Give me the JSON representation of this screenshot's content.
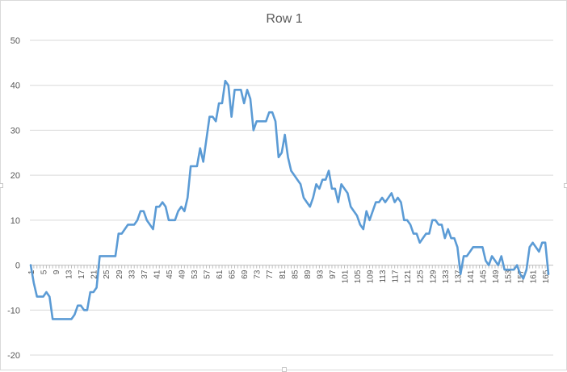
{
  "chart_data": {
    "type": "line",
    "title": "Row 1",
    "xlabel": "",
    "ylabel": "",
    "ylim": [
      -20,
      50
    ],
    "yticks": [
      -20,
      -10,
      0,
      10,
      20,
      30,
      40,
      50
    ],
    "grid": true,
    "legend": "none",
    "x_tick_labels": [
      "1",
      "5",
      "9",
      "13",
      "17",
      "21",
      "25",
      "29",
      "33",
      "37",
      "41",
      "45",
      "49",
      "53",
      "57",
      "61",
      "65",
      "69",
      "73",
      "77",
      "81",
      "85",
      "89",
      "93",
      "97",
      "101",
      "105",
      "109",
      "113",
      "117",
      "121",
      "125",
      "129",
      "133",
      "137",
      "141",
      "145",
      "149",
      "153",
      "157",
      "161",
      "165"
    ],
    "x": [
      1,
      2,
      3,
      4,
      5,
      6,
      7,
      8,
      9,
      10,
      11,
      12,
      13,
      14,
      15,
      16,
      17,
      18,
      19,
      20,
      21,
      22,
      23,
      24,
      25,
      26,
      27,
      28,
      29,
      30,
      31,
      32,
      33,
      34,
      35,
      36,
      37,
      38,
      39,
      40,
      41,
      42,
      43,
      44,
      45,
      46,
      47,
      48,
      49,
      50,
      51,
      52,
      53,
      54,
      55,
      56,
      57,
      58,
      59,
      60,
      61,
      62,
      63,
      64,
      65,
      66,
      67,
      68,
      69,
      70,
      71,
      72,
      73,
      74,
      75,
      76,
      77,
      78,
      79,
      80,
      81,
      82,
      83,
      84,
      85,
      86,
      87,
      88,
      89,
      90,
      91,
      92,
      93,
      94,
      95,
      96,
      97,
      98,
      99,
      100,
      101,
      102,
      103,
      104,
      105,
      106,
      107,
      108,
      109,
      110,
      111,
      112,
      113,
      114,
      115,
      116,
      117,
      118,
      119,
      120,
      121,
      122,
      123,
      124,
      125,
      126,
      127,
      128,
      129,
      130,
      131,
      132,
      133,
      134,
      135,
      136,
      137,
      138,
      139,
      140,
      141,
      142,
      143,
      144,
      145,
      146,
      147,
      148,
      149,
      150,
      151,
      152,
      153,
      154,
      155,
      156,
      157,
      158,
      159,
      160,
      161,
      162,
      163,
      164,
      165,
      166
    ],
    "series": [
      {
        "color": "#5b9bd5",
        "values": [
          0,
          -4,
          -7,
          -7,
          -7,
          -6,
          -7,
          -12,
          -12,
          -12,
          -12,
          -12,
          -12,
          -12,
          -11,
          -9,
          -9,
          -10,
          -10,
          -6,
          -6,
          -5,
          2,
          2,
          2,
          2,
          2,
          2,
          7,
          7,
          8,
          9,
          9,
          9,
          10,
          12,
          12,
          10,
          9,
          8,
          13,
          13,
          14,
          13,
          10,
          10,
          10,
          12,
          13,
          12,
          15,
          22,
          22,
          22,
          26,
          23,
          28,
          33,
          33,
          32,
          36,
          36,
          41,
          40,
          33,
          39,
          39,
          39,
          36,
          39,
          37,
          30,
          32,
          32,
          32,
          32,
          34,
          34,
          32,
          24,
          25,
          29,
          24,
          21,
          20,
          19,
          18,
          15,
          14,
          13,
          15,
          18,
          17,
          19,
          19,
          21,
          17,
          17,
          14,
          18,
          17,
          16,
          13,
          12,
          11,
          9,
          8,
          12,
          10,
          12,
          14,
          14,
          15,
          14,
          15,
          16,
          14,
          15,
          14,
          10,
          10,
          9,
          7,
          7,
          5,
          6,
          7,
          7,
          10,
          10,
          9,
          9,
          6,
          8,
          6,
          6,
          4,
          -2,
          2,
          2,
          3,
          4,
          4,
          4,
          4,
          1,
          0,
          2,
          1,
          0,
          2,
          -1,
          -1,
          -1,
          -1,
          0,
          -2,
          -3,
          -1,
          4,
          5,
          4,
          3,
          5,
          5,
          -2
        ]
      }
    ]
  }
}
